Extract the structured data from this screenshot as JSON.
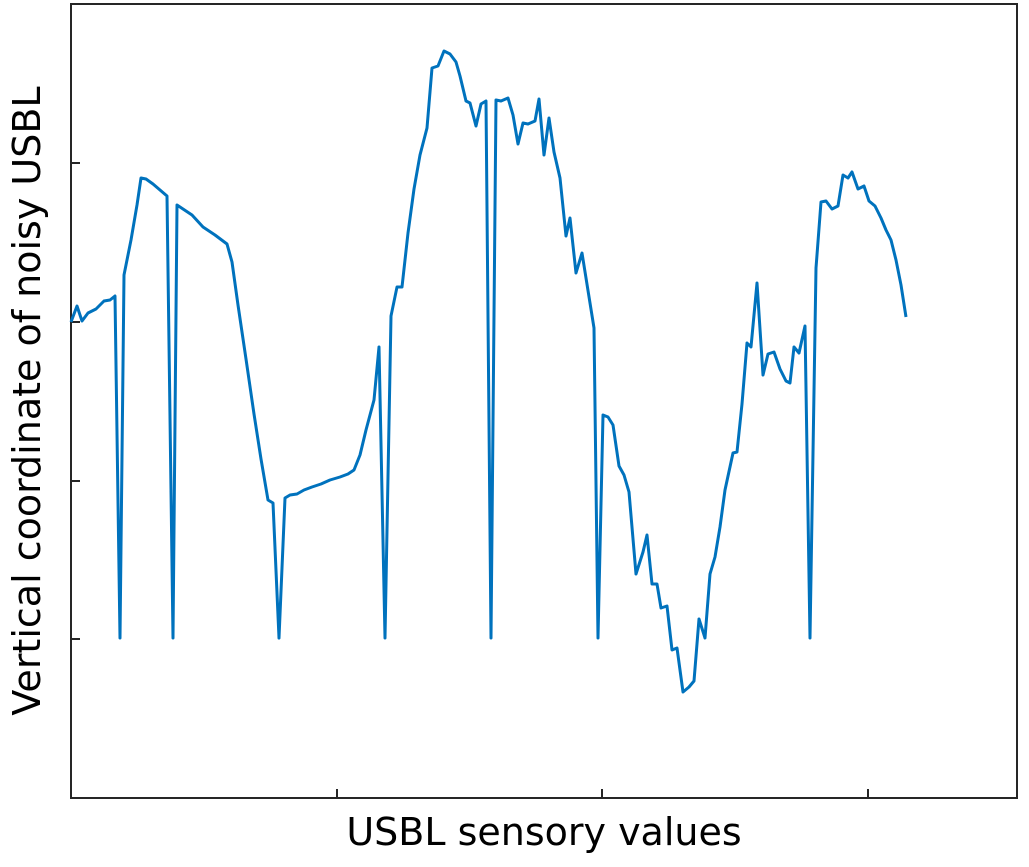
{
  "chart_data": {
    "type": "line",
    "xlabel": "USBL sensory values",
    "ylabel": "Vertical coordinate of noisy USBL",
    "xlim": [
      0,
      946
    ],
    "ylim": [
      0,
      794
    ],
    "xticks": [
      266,
      531,
      797
    ],
    "yticks": [
      159,
      317,
      476,
      635
    ],
    "series": [
      {
        "color": "#0072BD",
        "x": [
          0,
          6,
          11,
          17,
          25,
          33,
          39,
          44,
          49,
          53,
          60,
          66,
          70,
          75,
          82,
          89,
          96,
          102,
          106,
          112,
          121,
          132,
          144,
          156,
          161,
          167,
          175,
          183,
          190,
          197,
          202,
          208,
          214,
          219,
          226,
          233,
          241,
          250,
          259,
          269,
          277,
          283,
          289,
          295,
          303,
          308,
          314,
          320,
          326,
          331,
          337,
          343,
          349,
          356,
          361,
          367,
          373,
          379,
          385,
          389,
          395,
          399,
          405,
          410,
          415,
          420,
          425,
          430,
          437,
          442,
          447,
          452,
          457,
          464,
          468,
          473,
          478,
          483,
          489,
          495,
          499,
          505,
          511,
          519,
          523,
          527,
          532,
          537,
          542,
          548,
          553,
          558,
          565,
          572,
          576,
          581,
          586,
          590,
          596,
          601,
          606,
          612,
          618,
          623,
          628,
          634,
          639,
          644,
          649,
          654,
          662,
          666,
          671,
          676,
          680,
          686,
          692,
          697,
          703,
          709,
          715,
          719,
          723,
          728,
          734,
          739,
          745,
          750,
          755,
          761,
          767,
          772,
          777,
          781,
          787,
          793,
          798,
          804,
          810,
          815,
          820,
          825,
          830,
          835
        ],
        "values": [
          476,
          492,
          477,
          485,
          489,
          497,
          498,
          502,
          160,
          523,
          558,
          593,
          620,
          619,
          614,
          608,
          602,
          160,
          593,
          589,
          583,
          571,
          563,
          554,
          536,
          493,
          439,
          384,
          339,
          298,
          295,
          160,
          300,
          303,
          304,
          308,
          311,
          314,
          318,
          321,
          324,
          328,
          343,
          368,
          398,
          451,
          160,
          482,
          511,
          511,
          565,
          609,
          643,
          670,
          730,
          732,
          747,
          744,
          736,
          722,
          697,
          695,
          672,
          694,
          697,
          160,
          698,
          697,
          700,
          683,
          654,
          675,
          674,
          677,
          699,
          643,
          680,
          646,
          620,
          562,
          580,
          525,
          545,
          495,
          470,
          160,
          383,
          381,
          373,
          332,
          323,
          306,
          224,
          246,
          263,
          214,
          214,
          190,
          192,
          148,
          150,
          106,
          111,
          117,
          179,
          160,
          224,
          241,
          271,
          308,
          345,
          346,
          394,
          455,
          451,
          515,
          423,
          444,
          446,
          429,
          417,
          415,
          451,
          445,
          472,
          160,
          530,
          596,
          597,
          589,
          592,
          623,
          620,
          626,
          609,
          612,
          597,
          592,
          580,
          568,
          558,
          538,
          513,
          481
        ]
      }
    ]
  }
}
